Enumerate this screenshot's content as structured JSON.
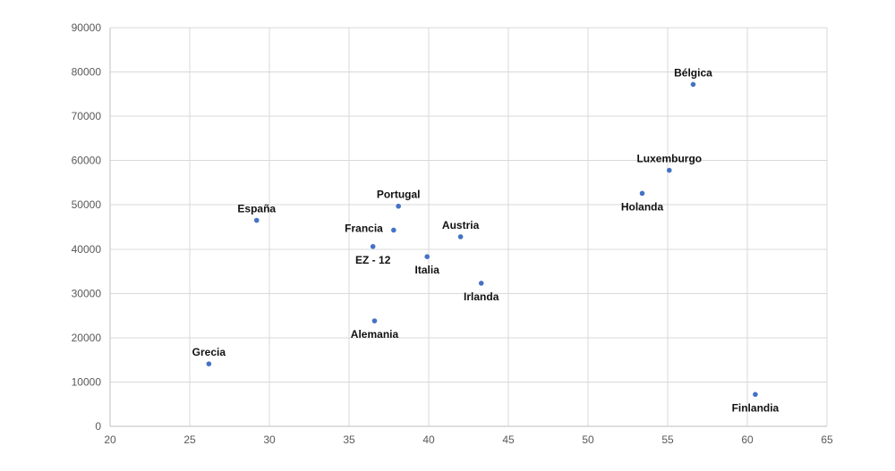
{
  "chart_data": {
    "type": "scatter",
    "title": "",
    "xlabel": "",
    "ylabel": "",
    "xlim": [
      20,
      65
    ],
    "ylim": [
      0,
      90000
    ],
    "x_ticks": [
      20,
      25,
      30,
      35,
      40,
      45,
      50,
      55,
      60,
      65
    ],
    "y_ticks": [
      0,
      10000,
      20000,
      30000,
      40000,
      50000,
      60000,
      70000,
      80000,
      90000
    ],
    "grid": true,
    "legend": "none",
    "marker_color": "#4472c4",
    "points": [
      {
        "label": "Bélgica",
        "x": 56.6,
        "y": 77200,
        "label_pos": "above"
      },
      {
        "label": "Luxemburgo",
        "x": 55.1,
        "y": 57800,
        "label_pos": "above"
      },
      {
        "label": "Holanda",
        "x": 53.4,
        "y": 52600,
        "label_pos": "below"
      },
      {
        "label": "España",
        "x": 29.2,
        "y": 46500,
        "label_pos": "above"
      },
      {
        "label": "Portugal",
        "x": 38.1,
        "y": 49700,
        "label_pos": "above"
      },
      {
        "label": "Francia",
        "x": 37.8,
        "y": 44300,
        "label_pos": "left"
      },
      {
        "label": "EZ - 12",
        "x": 36.5,
        "y": 40600,
        "label_pos": "below"
      },
      {
        "label": "Austria",
        "x": 42.0,
        "y": 42800,
        "label_pos": "above"
      },
      {
        "label": "Italia",
        "x": 39.9,
        "y": 38300,
        "label_pos": "below"
      },
      {
        "label": "Irlanda",
        "x": 43.3,
        "y": 32300,
        "label_pos": "below"
      },
      {
        "label": "Alemania",
        "x": 36.6,
        "y": 23800,
        "label_pos": "below"
      },
      {
        "label": "Grecia",
        "x": 26.2,
        "y": 14100,
        "label_pos": "above"
      },
      {
        "label": "Finlandia",
        "x": 60.5,
        "y": 7200,
        "label_pos": "below"
      }
    ]
  }
}
